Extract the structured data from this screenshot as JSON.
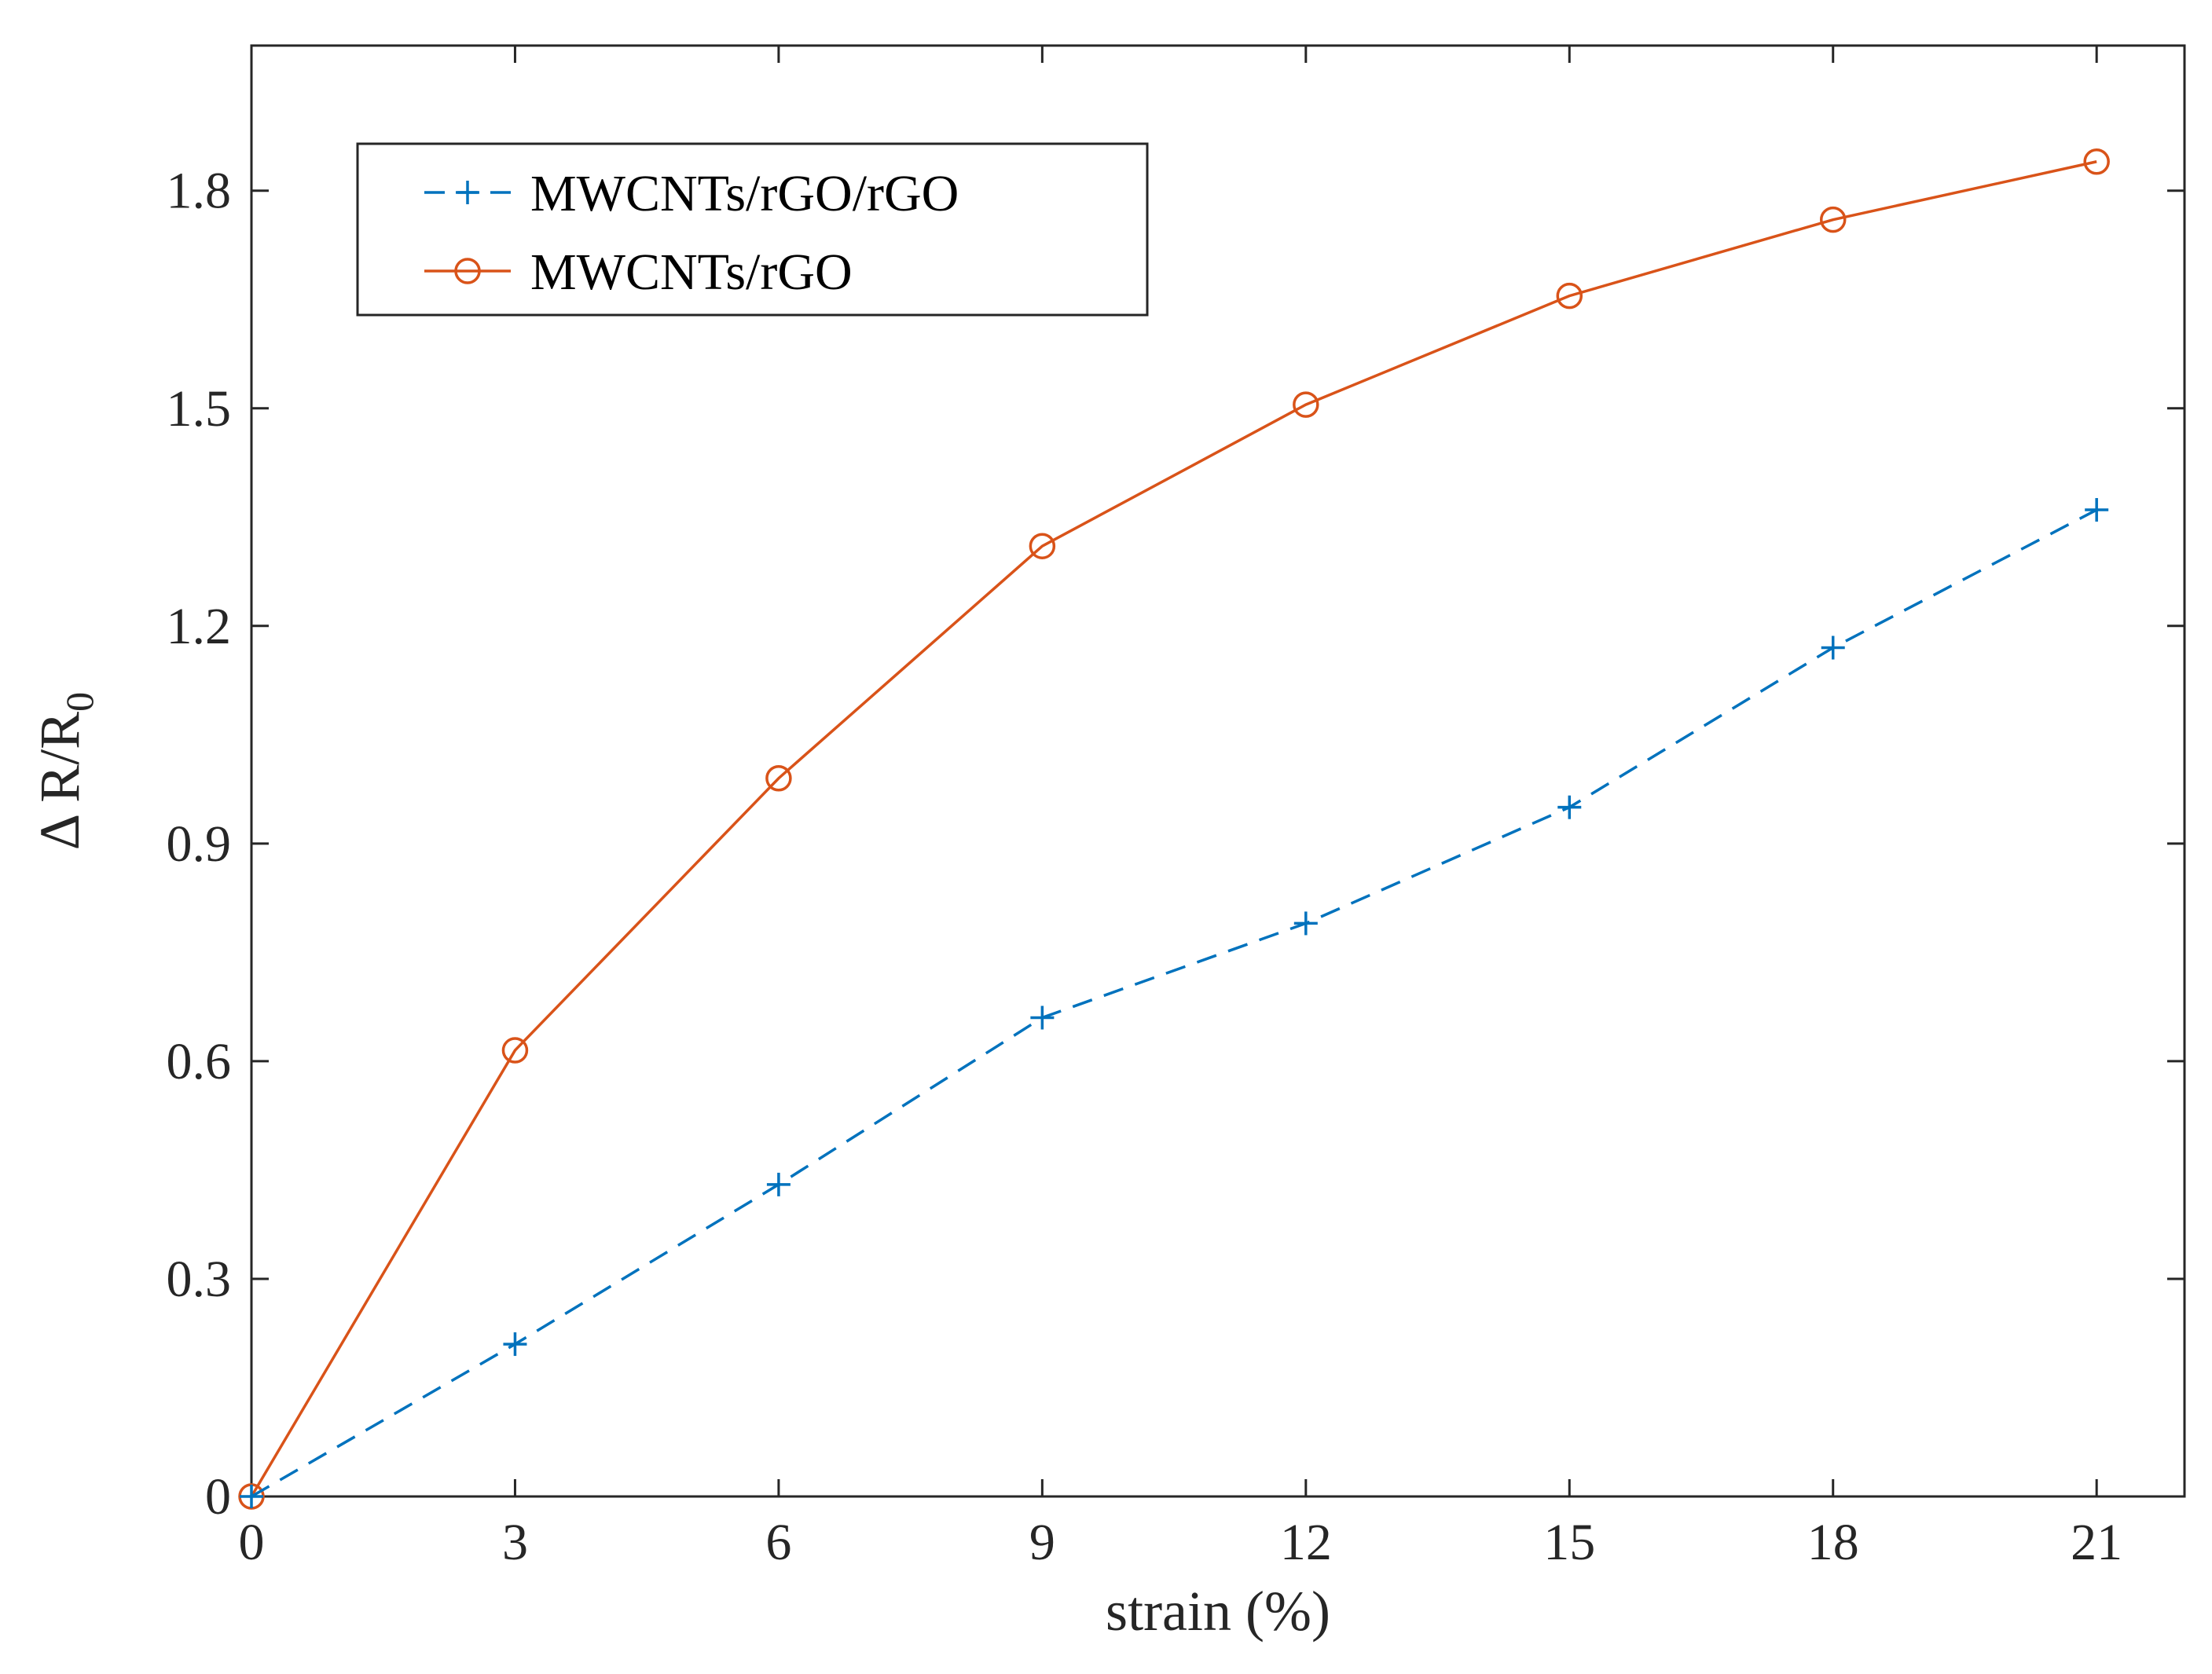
{
  "chart_data": {
    "type": "line",
    "title": "",
    "xlabel": "strain (%)",
    "ylabel": {
      "main": "Δ R/R",
      "subscript": "0"
    },
    "x": [
      0,
      3,
      6,
      9,
      12,
      15,
      18,
      21
    ],
    "xlim": [
      0,
      22
    ],
    "ylim": [
      0,
      2.0
    ],
    "xticks": [
      0,
      3,
      6,
      9,
      12,
      15,
      18,
      21
    ],
    "yticks": [
      0,
      0.3,
      0.6,
      0.9,
      1.2,
      1.5,
      1.8
    ],
    "xtick_labels": [
      "0",
      "3",
      "6",
      "9",
      "12",
      "15",
      "18",
      "21"
    ],
    "ytick_labels": [
      "0",
      "0.3",
      "0.6",
      "0.9",
      "1.2",
      "1.5",
      "1.8"
    ],
    "grid": false,
    "legend_position": "top-left",
    "series": [
      {
        "name": "MWCNTs/rGO/rGO",
        "values": [
          0,
          0.21,
          0.43,
          0.66,
          0.79,
          0.95,
          1.17,
          1.36
        ],
        "color": "#0072BD",
        "line_style": "dashed",
        "marker": "plus"
      },
      {
        "name": "MWCNTs/rGO",
        "values": [
          0,
          0.615,
          0.99,
          1.31,
          1.505,
          1.655,
          1.76,
          1.84
        ],
        "color": "#D95319",
        "line_style": "solid",
        "marker": "circle"
      }
    ]
  }
}
